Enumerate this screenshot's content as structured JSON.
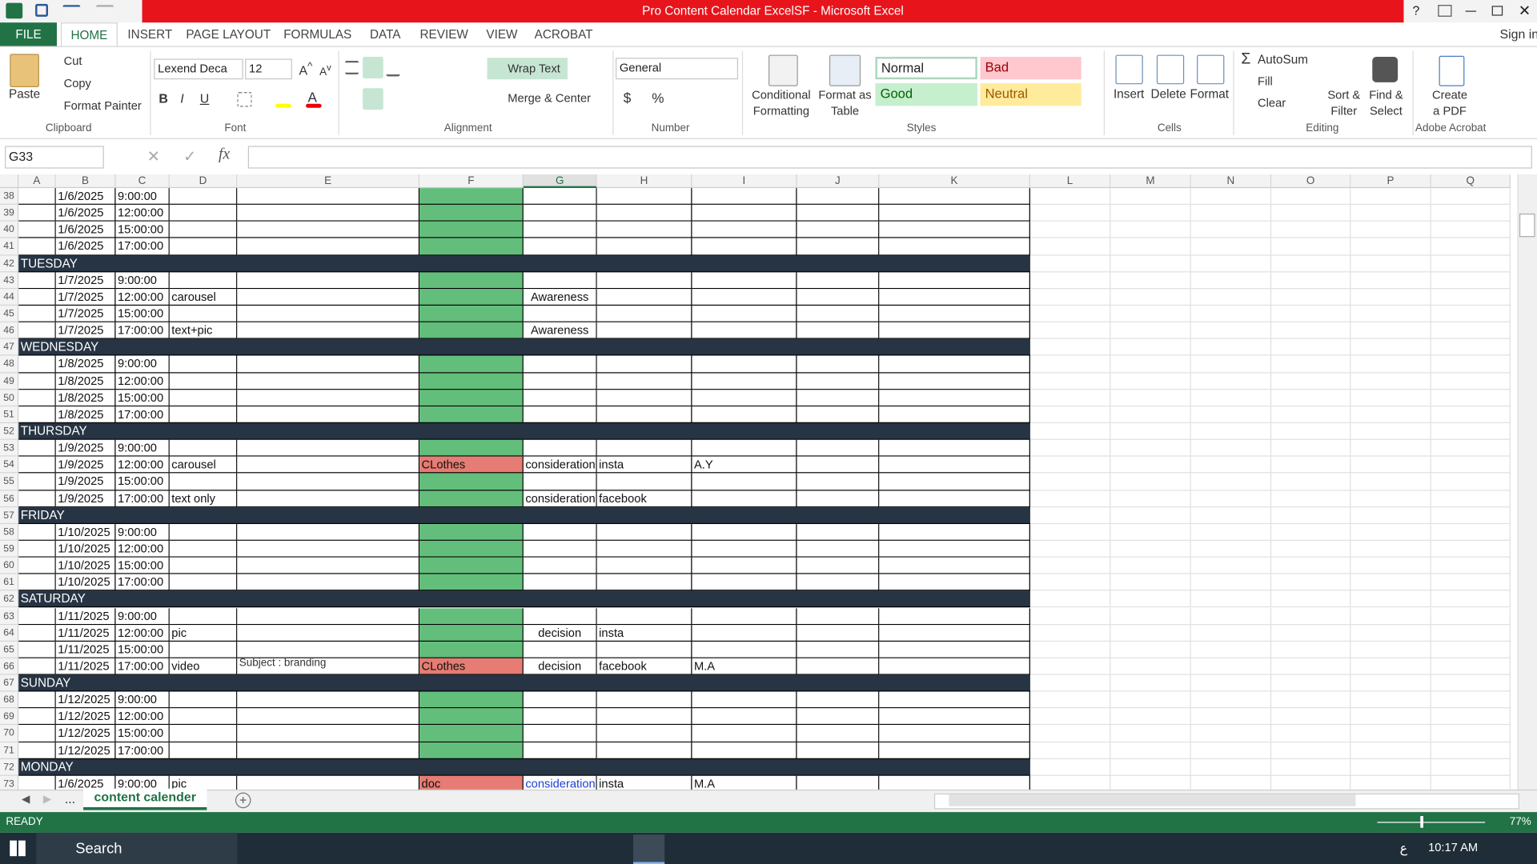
{
  "title_bar": {
    "title": "Pro Content Calendar ExcelSF -  Microsoft Excel",
    "help": "?"
  },
  "tabs": [
    "FILE",
    "HOME",
    "INSERT",
    "PAGE LAYOUT",
    "FORMULAS",
    "DATA",
    "REVIEW",
    "VIEW",
    "ACROBAT"
  ],
  "sign_in": "Sign in",
  "ribbon": {
    "clipboard": {
      "paste": "Paste",
      "cut": "Cut",
      "copy": "Copy",
      "format_painter": "Format Painter",
      "label": "Clipboard"
    },
    "font": {
      "name": "Lexend Deca",
      "size": 12,
      "label": "Font"
    },
    "alignment": {
      "wrap": "Wrap Text",
      "merge": "Merge & Center",
      "label": "Alignment"
    },
    "number": {
      "format": "General",
      "label": "Number"
    },
    "styles": {
      "conditional": "Conditional Formatting",
      "format_table": "Format as Table",
      "normal": "Normal",
      "bad": "Bad",
      "good": "Good",
      "neutral": "Neutral",
      "label": "Styles"
    },
    "cells": {
      "insert": "Insert",
      "delete": "Delete",
      "format": "Format",
      "label": "Cells"
    },
    "editing": {
      "autosum": "AutoSum",
      "fill": "Fill",
      "clear": "Clear",
      "sort": "Sort & Filter",
      "find": "Find & Select",
      "label": "Editing"
    },
    "acrobat": {
      "create": "Create a PDF",
      "label": "Adobe Acrobat"
    }
  },
  "formula_bar": {
    "name_box": "G33",
    "function_label": "fx"
  },
  "sheet": {
    "columns": [
      "A",
      "B",
      "C",
      "D",
      "E",
      "F",
      "G",
      "H",
      "I",
      "J",
      "K",
      "L",
      "M",
      "N",
      "O",
      "P",
      "Q"
    ],
    "rows": [
      {
        "number": 38,
        "cells": [
          null,
          "1/6/2025",
          "9:00:00",
          null,
          null,
          null,
          null,
          null,
          null,
          null,
          null
        ]
      },
      {
        "number": 39,
        "cells": [
          null,
          "1/6/2025",
          "12:00:00",
          null,
          null,
          null,
          null,
          null,
          null,
          null,
          null
        ]
      },
      {
        "number": 40,
        "cells": [
          null,
          "1/6/2025",
          "15:00:00",
          null,
          null,
          null,
          null,
          null,
          null,
          null,
          null
        ]
      },
      {
        "number": 41,
        "cells": [
          null,
          "1/6/2025",
          "17:00:00",
          null,
          null,
          null,
          null,
          null,
          null,
          null,
          null
        ]
      },
      {
        "number": 42,
        "cells": [
          "TUESDAY",
          null,
          null,
          null,
          null,
          null,
          null,
          null,
          null,
          null,
          null
        ]
      },
      {
        "number": 43,
        "cells": [
          null,
          "1/7/2025",
          "9:00:00",
          null,
          null,
          null,
          null,
          null,
          null,
          null,
          null
        ]
      },
      {
        "number": 44,
        "cells": [
          null,
          "1/7/2025",
          "12:00:00",
          "carousel",
          null,
          null,
          "Awareness",
          null,
          null,
          null,
          null
        ]
      },
      {
        "number": 45,
        "cells": [
          null,
          "1/7/2025",
          "15:00:00",
          null,
          null,
          null,
          null,
          null,
          null,
          null,
          null
        ]
      },
      {
        "number": 46,
        "cells": [
          null,
          "1/7/2025",
          "17:00:00",
          "text+pic",
          null,
          null,
          "Awareness",
          null,
          null,
          null,
          null
        ]
      },
      {
        "number": 47,
        "cells": [
          "WEDNESDAY",
          null,
          null,
          null,
          null,
          null,
          null,
          null,
          null,
          null,
          null
        ]
      },
      {
        "number": 48,
        "cells": [
          null,
          "1/8/2025",
          "9:00:00",
          null,
          null,
          null,
          null,
          null,
          null,
          null,
          null
        ]
      },
      {
        "number": 49,
        "cells": [
          null,
          "1/8/2025",
          "12:00:00",
          null,
          null,
          null,
          null,
          null,
          null,
          null,
          null
        ]
      },
      {
        "number": 50,
        "cells": [
          null,
          "1/8/2025",
          "15:00:00",
          null,
          null,
          null,
          null,
          null,
          null,
          null,
          null
        ]
      },
      {
        "number": 51,
        "cells": [
          null,
          "1/8/2025",
          "17:00:00",
          null,
          null,
          null,
          null,
          null,
          null,
          null,
          null
        ]
      },
      {
        "number": 52,
        "cells": [
          "THURSDAY",
          null,
          null,
          null,
          null,
          null,
          null,
          null,
          null,
          null,
          null
        ]
      },
      {
        "number": 53,
        "cells": [
          null,
          "1/9/2025",
          "9:00:00",
          null,
          null,
          null,
          null,
          null,
          null,
          null,
          null
        ]
      },
      {
        "number": 54,
        "cells": [
          null,
          "1/9/2025",
          "12:00:00",
          "carousel",
          null,
          "CLothes",
          "consideration",
          "insta",
          "A.Y",
          null,
          null
        ]
      },
      {
        "number": 55,
        "cells": [
          null,
          "1/9/2025",
          "15:00:00",
          null,
          null,
          null,
          null,
          null,
          null,
          null,
          null
        ]
      },
      {
        "number": 56,
        "cells": [
          null,
          "1/9/2025",
          "17:00:00",
          "text only",
          null,
          null,
          "consideration",
          "facebook",
          null,
          null,
          null
        ]
      },
      {
        "number": 57,
        "cells": [
          "FRIDAY",
          null,
          null,
          null,
          null,
          null,
          null,
          null,
          null,
          null,
          null
        ]
      },
      {
        "number": 58,
        "cells": [
          null,
          "1/10/2025",
          "9:00:00",
          null,
          null,
          null,
          null,
          null,
          null,
          null,
          null
        ]
      },
      {
        "number": 59,
        "cells": [
          null,
          "1/10/2025",
          "12:00:00",
          null,
          null,
          null,
          null,
          null,
          null,
          null,
          null
        ]
      },
      {
        "number": 60,
        "cells": [
          null,
          "1/10/2025",
          "15:00:00",
          null,
          null,
          null,
          null,
          null,
          null,
          null,
          null
        ]
      },
      {
        "number": 61,
        "cells": [
          null,
          "1/10/2025",
          "17:00:00",
          null,
          null,
          null,
          null,
          null,
          null,
          null,
          null
        ]
      },
      {
        "number": 62,
        "cells": [
          "SATURDAY",
          null,
          null,
          null,
          null,
          null,
          null,
          null,
          null,
          null,
          null
        ]
      },
      {
        "number": 63,
        "cells": [
          null,
          "1/11/2025",
          "9:00:00",
          null,
          null,
          null,
          null,
          null,
          null,
          null,
          null
        ]
      },
      {
        "number": 64,
        "cells": [
          null,
          "1/11/2025",
          "12:00:00",
          "pic",
          null,
          null,
          "decision",
          "insta",
          null,
          null,
          null
        ]
      },
      {
        "number": 65,
        "cells": [
          null,
          "1/11/2025",
          "15:00:00",
          null,
          null,
          null,
          null,
          null,
          null,
          null,
          null
        ]
      },
      {
        "number": 66,
        "cells": [
          null,
          "1/11/2025",
          "17:00:00",
          "video",
          "Subject : branding",
          "CLothes",
          "decision",
          "facebook",
          "M.A",
          null,
          null
        ]
      },
      {
        "number": 67,
        "cells": [
          "SUNDAY",
          null,
          null,
          null,
          null,
          null,
          null,
          null,
          null,
          null,
          null
        ]
      },
      {
        "number": 68,
        "cells": [
          null,
          "1/12/2025",
          "9:00:00",
          null,
          null,
          null,
          null,
          null,
          null,
          null,
          null
        ]
      },
      {
        "number": 69,
        "cells": [
          null,
          "1/12/2025",
          "12:00:00",
          null,
          null,
          null,
          null,
          null,
          null,
          null,
          null
        ]
      },
      {
        "number": 70,
        "cells": [
          null,
          "1/12/2025",
          "15:00:00",
          null,
          null,
          null,
          null,
          null,
          null,
          null,
          null
        ]
      },
      {
        "number": 71,
        "cells": [
          null,
          "1/12/2025",
          "17:00:00",
          null,
          null,
          null,
          null,
          null,
          null,
          null,
          null
        ]
      },
      {
        "number": 72,
        "cells": [
          "MONDAY",
          null,
          null,
          null,
          null,
          null,
          null,
          null,
          null,
          null,
          null
        ]
      },
      {
        "number": 73,
        "cells": [
          null,
          "1/6/2025",
          "9:00:00",
          "pic",
          null,
          "doc",
          "consideration",
          "insta",
          "M.A",
          null,
          null
        ]
      }
    ]
  },
  "sheet_tabs": {
    "more": "...",
    "active": "content calender"
  },
  "status_bar": {
    "status": "READY",
    "zoom": "77%"
  },
  "taskbar": {
    "search": "Search",
    "lang": "ع",
    "time": "10:17 AM"
  }
}
